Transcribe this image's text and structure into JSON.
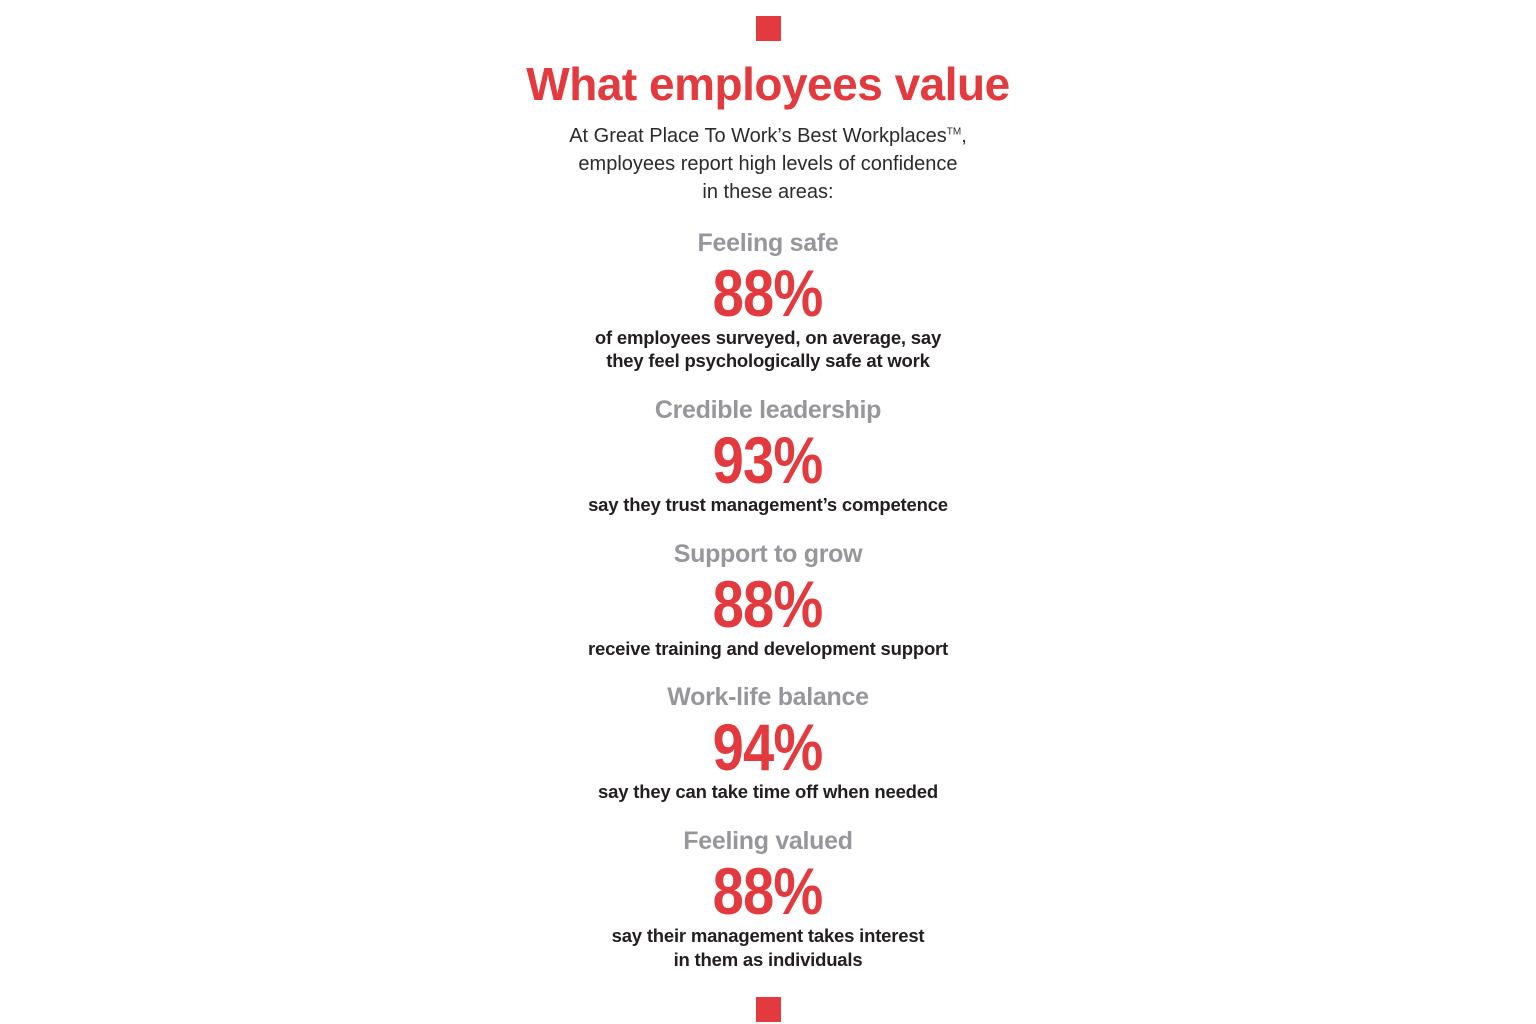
{
  "colors": {
    "accent": "#e23a3e",
    "category": "#97979b",
    "text": "#231f20"
  },
  "header": {
    "title": "What employees value",
    "subtitle_line1_pre": "At Great Place To Work’s Best Workplaces",
    "subtitle_tm": "TM",
    "subtitle_line1_post": ",",
    "subtitle_line2": "employees report high levels of confidence",
    "subtitle_line3": "in these areas:"
  },
  "stats": [
    {
      "category": "Feeling safe",
      "value": "88%",
      "desc_lines": [
        "of employees surveyed, on average, say",
        "they feel psychologically safe at work"
      ]
    },
    {
      "category": "Credible leadership",
      "value": "93%",
      "desc_lines": [
        "say they trust management’s competence"
      ]
    },
    {
      "category": "Support to grow",
      "value": "88%",
      "desc_lines": [
        "receive training and development support"
      ]
    },
    {
      "category": "Work-life balance",
      "value": "94%",
      "desc_lines": [
        "say they can take time off when needed"
      ]
    },
    {
      "category": "Feeling valued",
      "value": "88%",
      "desc_lines": [
        "say their management takes interest",
        "in them as individuals"
      ]
    }
  ],
  "chart_data": {
    "type": "bar",
    "title": "What employees value",
    "subtitle": "At Great Place To Work’s Best Workplaces™, employees report high levels of confidence in these areas:",
    "categories": [
      "Feeling safe",
      "Credible leadership",
      "Support to grow",
      "Work-life balance",
      "Feeling valued"
    ],
    "values": [
      88,
      93,
      88,
      94,
      88
    ],
    "unit": "%",
    "ylim": [
      0,
      100
    ],
    "annotations": [
      "of employees surveyed, on average, say they feel psychologically safe at work",
      "say they trust management’s competence",
      "receive training and development support",
      "say they can take time off when needed",
      "say their management takes interest in them as individuals"
    ]
  }
}
